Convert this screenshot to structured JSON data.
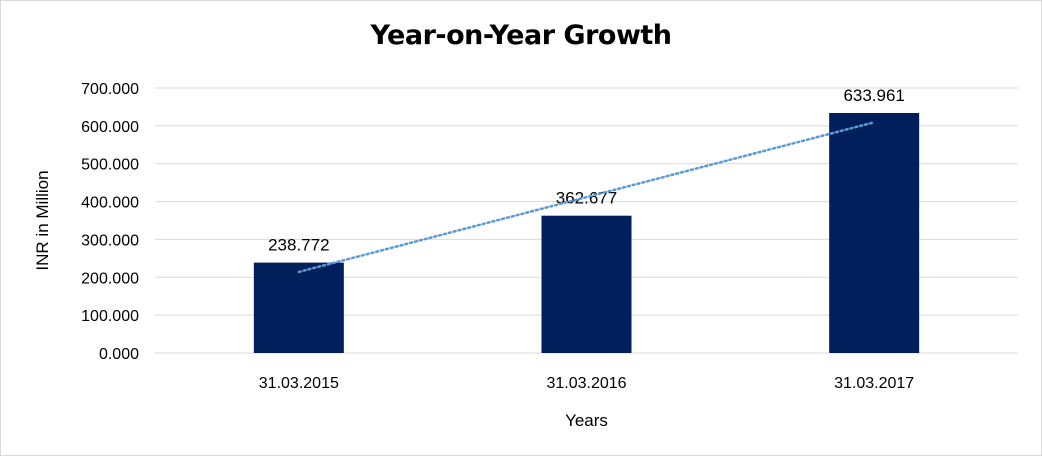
{
  "chart_data": {
    "type": "bar",
    "title": "Year-on-Year Growth",
    "categories": [
      "31.03.2015",
      "31.03.2016",
      "31.03.2017"
    ],
    "values": [
      238.772,
      362.677,
      633.961
    ],
    "data_labels": [
      "238.772",
      "362.677",
      "633.961"
    ],
    "xlabel": "Years",
    "ylabel": "INR in Million",
    "ylim": [
      0,
      700
    ],
    "yticks": [
      0,
      100,
      200,
      300,
      400,
      500,
      600,
      700
    ],
    "ytick_labels": [
      "0.000",
      "100.000",
      "200.000",
      "300.000",
      "400.000",
      "500.000",
      "600.000",
      "700.000"
    ],
    "grid": true,
    "trendline": "linear",
    "colors": {
      "bar": "#001f5b",
      "trendline": "#5b9bd5",
      "grid": "#d9d9d9"
    }
  }
}
